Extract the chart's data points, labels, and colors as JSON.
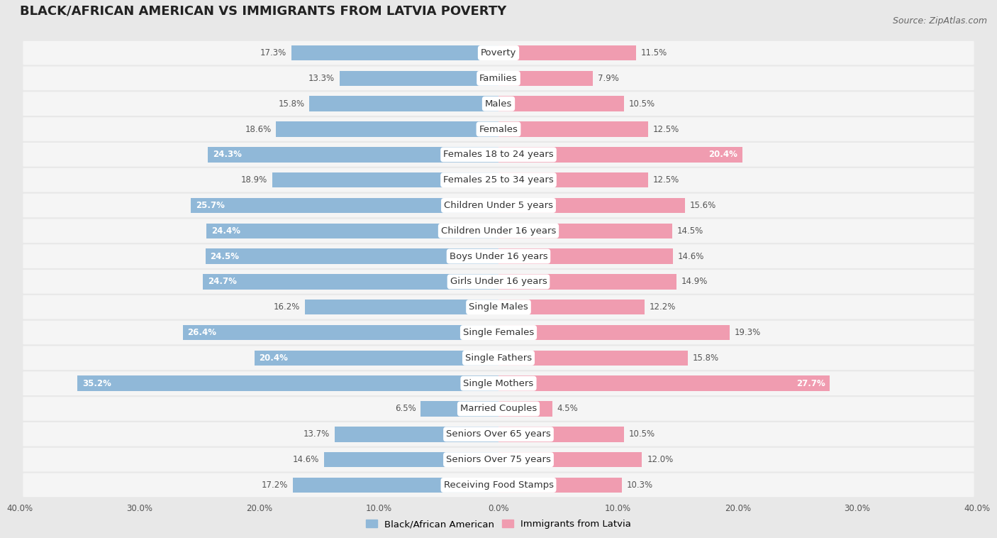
{
  "title": "BLACK/AFRICAN AMERICAN VS IMMIGRANTS FROM LATVIA POVERTY",
  "source": "Source: ZipAtlas.com",
  "categories": [
    "Poverty",
    "Families",
    "Males",
    "Females",
    "Females 18 to 24 years",
    "Females 25 to 34 years",
    "Children Under 5 years",
    "Children Under 16 years",
    "Boys Under 16 years",
    "Girls Under 16 years",
    "Single Males",
    "Single Females",
    "Single Fathers",
    "Single Mothers",
    "Married Couples",
    "Seniors Over 65 years",
    "Seniors Over 75 years",
    "Receiving Food Stamps"
  ],
  "black_values": [
    17.3,
    13.3,
    15.8,
    18.6,
    24.3,
    18.9,
    25.7,
    24.4,
    24.5,
    24.7,
    16.2,
    26.4,
    20.4,
    35.2,
    6.5,
    13.7,
    14.6,
    17.2
  ],
  "latvia_values": [
    11.5,
    7.9,
    10.5,
    12.5,
    20.4,
    12.5,
    15.6,
    14.5,
    14.6,
    14.9,
    12.2,
    19.3,
    15.8,
    27.7,
    4.5,
    10.5,
    12.0,
    10.3
  ],
  "black_color": "#90b8d8",
  "latvia_color": "#f09cb0",
  "black_label": "Black/African American",
  "latvia_label": "Immigrants from Latvia",
  "xlim": 40.0,
  "background_color": "#e8e8e8",
  "row_bg_color": "#f5f5f5",
  "bar_height": 0.6,
  "title_fontsize": 13,
  "label_fontsize": 9.5,
  "value_fontsize": 8.5,
  "source_fontsize": 9,
  "axis_label_color": "#555555",
  "category_text_color": "#333333",
  "value_text_dark": "#555555",
  "value_text_light": "#ffffff"
}
